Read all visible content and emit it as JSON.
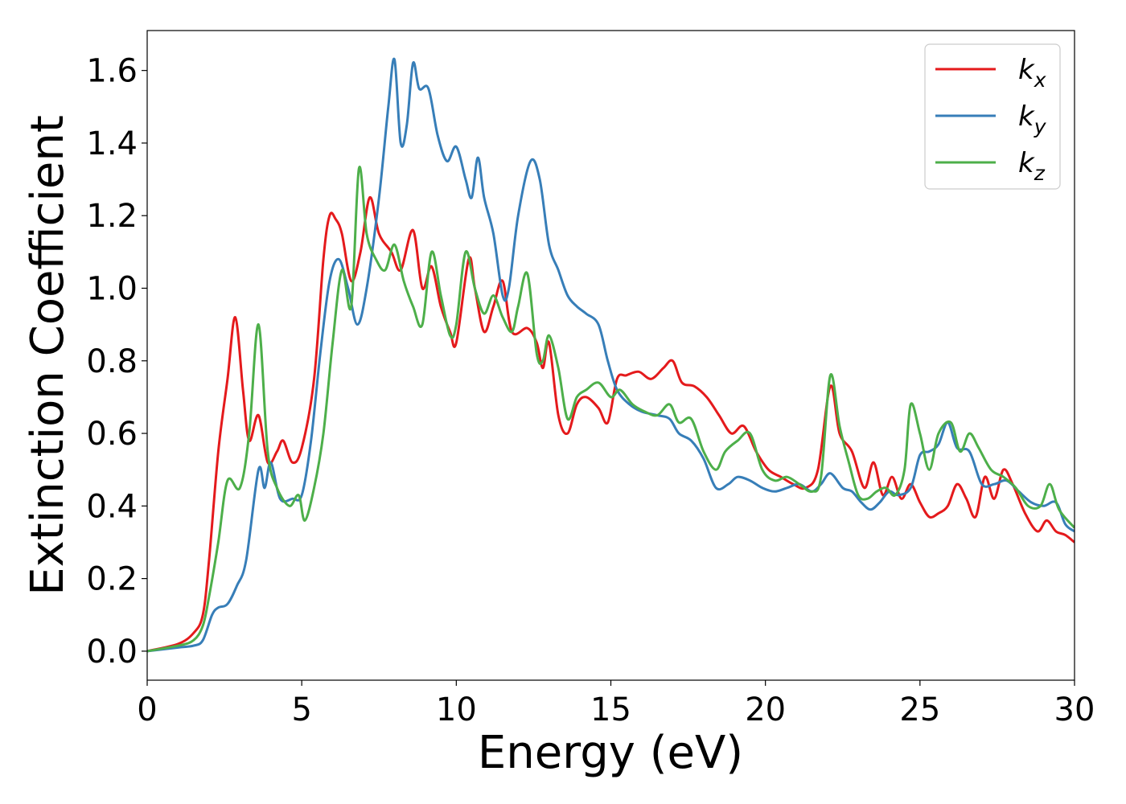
{
  "chart_data": {
    "type": "line",
    "xlabel": "Energy (eV)",
    "ylabel": "Extinction Coefficient",
    "xlim": [
      0,
      30
    ],
    "ylim": [
      -0.08,
      1.71
    ],
    "xticks": [
      0,
      5,
      10,
      15,
      20,
      25,
      30
    ],
    "yticks": [
      0.0,
      0.2,
      0.4,
      0.6,
      0.8,
      1.0,
      1.2,
      1.4,
      1.6
    ],
    "grid": false,
    "legend_position": "top-right",
    "series": [
      {
        "name": "k",
        "subscript": "x",
        "color": "#e41a1c",
        "x": [
          0,
          1,
          1.5,
          1.8,
          2.0,
          2.3,
          2.6,
          2.85,
          3.1,
          3.3,
          3.6,
          3.9,
          4.2,
          4.4,
          4.7,
          5.0,
          5.4,
          5.7,
          5.9,
          6.1,
          6.3,
          6.6,
          6.9,
          7.2,
          7.5,
          7.9,
          8.2,
          8.6,
          8.9,
          9.2,
          9.5,
          9.8,
          10.0,
          10.4,
          10.6,
          10.9,
          11.2,
          11.5,
          11.8,
          12.3,
          12.6,
          12.8,
          13.0,
          13.3,
          13.6,
          13.9,
          14.2,
          14.6,
          14.9,
          15.2,
          15.5,
          15.9,
          16.3,
          16.7,
          17.0,
          17.3,
          17.7,
          18.1,
          18.5,
          18.9,
          19.3,
          19.7,
          20.1,
          20.5,
          20.9,
          21.3,
          21.7,
          22.1,
          22.4,
          22.8,
          23.2,
          23.5,
          23.8,
          24.1,
          24.4,
          24.7,
          25.0,
          25.3,
          25.6,
          25.9,
          26.2,
          26.5,
          26.8,
          27.1,
          27.4,
          27.7,
          28.0,
          28.4,
          28.8,
          29.1,
          29.4,
          29.7,
          30.0
        ],
        "values": [
          0.0,
          0.02,
          0.05,
          0.1,
          0.25,
          0.55,
          0.75,
          0.92,
          0.72,
          0.58,
          0.65,
          0.52,
          0.55,
          0.58,
          0.52,
          0.56,
          0.75,
          1.08,
          1.2,
          1.19,
          1.15,
          1.02,
          1.1,
          1.25,
          1.15,
          1.1,
          1.05,
          1.16,
          1.0,
          1.06,
          0.95,
          0.88,
          0.85,
          1.08,
          1.0,
          0.88,
          0.95,
          1.02,
          0.88,
          0.89,
          0.85,
          0.78,
          0.85,
          0.65,
          0.6,
          0.68,
          0.7,
          0.67,
          0.63,
          0.75,
          0.76,
          0.77,
          0.75,
          0.78,
          0.8,
          0.74,
          0.73,
          0.7,
          0.65,
          0.6,
          0.62,
          0.55,
          0.5,
          0.48,
          0.46,
          0.45,
          0.5,
          0.73,
          0.6,
          0.55,
          0.45,
          0.52,
          0.43,
          0.48,
          0.42,
          0.46,
          0.41,
          0.37,
          0.38,
          0.4,
          0.46,
          0.42,
          0.37,
          0.48,
          0.42,
          0.5,
          0.46,
          0.38,
          0.33,
          0.36,
          0.33,
          0.32,
          0.3
        ]
      },
      {
        "name": "k",
        "subscript": "y",
        "color": "#377eb8",
        "x": [
          0,
          1,
          1.5,
          1.8,
          2.1,
          2.3,
          2.6,
          2.9,
          3.2,
          3.6,
          3.8,
          4.0,
          4.3,
          4.7,
          5.0,
          5.3,
          5.6,
          5.9,
          6.2,
          6.5,
          6.8,
          7.1,
          7.5,
          7.8,
          8.0,
          8.2,
          8.4,
          8.6,
          8.8,
          9.1,
          9.4,
          9.7,
          10.0,
          10.3,
          10.5,
          10.7,
          10.9,
          11.2,
          11.5,
          11.7,
          12.0,
          12.4,
          12.7,
          13.0,
          13.3,
          13.6,
          13.9,
          14.2,
          14.6,
          14.9,
          15.2,
          15.6,
          16.0,
          16.5,
          16.9,
          17.2,
          17.6,
          18.0,
          18.4,
          18.8,
          19.1,
          19.5,
          19.9,
          20.3,
          20.7,
          21.1,
          21.5,
          21.8,
          22.1,
          22.5,
          22.8,
          23.1,
          23.4,
          23.7,
          24.0,
          24.3,
          24.7,
          25.0,
          25.3,
          25.6,
          25.9,
          26.2,
          26.6,
          27.0,
          27.4,
          27.8,
          28.2,
          28.6,
          29.0,
          29.4,
          29.7,
          30.0
        ],
        "values": [
          0.0,
          0.01,
          0.015,
          0.03,
          0.1,
          0.12,
          0.13,
          0.18,
          0.25,
          0.5,
          0.45,
          0.52,
          0.42,
          0.42,
          0.43,
          0.58,
          0.82,
          1.02,
          1.08,
          1.0,
          0.9,
          1.0,
          1.25,
          1.5,
          1.63,
          1.4,
          1.45,
          1.62,
          1.55,
          1.55,
          1.42,
          1.35,
          1.39,
          1.3,
          1.25,
          1.36,
          1.25,
          1.15,
          0.98,
          1.0,
          1.2,
          1.35,
          1.3,
          1.12,
          1.05,
          0.98,
          0.95,
          0.93,
          0.9,
          0.8,
          0.72,
          0.68,
          0.66,
          0.65,
          0.64,
          0.6,
          0.58,
          0.53,
          0.45,
          0.46,
          0.48,
          0.47,
          0.45,
          0.44,
          0.45,
          0.46,
          0.44,
          0.46,
          0.49,
          0.45,
          0.44,
          0.41,
          0.39,
          0.41,
          0.44,
          0.43,
          0.45,
          0.54,
          0.55,
          0.57,
          0.63,
          0.56,
          0.55,
          0.46,
          0.46,
          0.47,
          0.44,
          0.41,
          0.4,
          0.41,
          0.35,
          0.33
        ]
      },
      {
        "name": "k",
        "subscript": "z",
        "color": "#4daf4a",
        "x": [
          0,
          1,
          1.5,
          1.8,
          2.0,
          2.3,
          2.6,
          3.0,
          3.3,
          3.6,
          3.9,
          4.2,
          4.6,
          4.9,
          5.1,
          5.4,
          5.7,
          6.0,
          6.3,
          6.6,
          6.85,
          7.1,
          7.4,
          7.7,
          8.0,
          8.3,
          8.6,
          8.9,
          9.2,
          9.5,
          9.8,
          10.0,
          10.3,
          10.6,
          10.9,
          11.2,
          11.5,
          11.8,
          12.0,
          12.3,
          12.6,
          12.8,
          13.0,
          13.3,
          13.6,
          13.9,
          14.2,
          14.6,
          15.0,
          15.3,
          15.7,
          16.1,
          16.5,
          16.9,
          17.2,
          17.6,
          18.0,
          18.4,
          18.7,
          19.1,
          19.5,
          19.9,
          20.3,
          20.7,
          21.1,
          21.5,
          21.8,
          22.1,
          22.4,
          22.7,
          23.0,
          23.3,
          23.6,
          23.9,
          24.2,
          24.5,
          24.7,
          25.0,
          25.3,
          25.6,
          26.0,
          26.3,
          26.6,
          26.9,
          27.3,
          27.7,
          28.1,
          28.5,
          28.9,
          29.2,
          29.5,
          30.0
        ],
        "values": [
          0.0,
          0.015,
          0.03,
          0.07,
          0.15,
          0.3,
          0.47,
          0.45,
          0.6,
          0.9,
          0.55,
          0.45,
          0.4,
          0.43,
          0.36,
          0.45,
          0.6,
          0.85,
          1.05,
          0.95,
          1.33,
          1.15,
          1.08,
          1.05,
          1.12,
          1.02,
          0.95,
          0.9,
          1.1,
          0.98,
          0.87,
          0.9,
          1.1,
          1.0,
          0.93,
          0.98,
          0.92,
          0.88,
          0.95,
          1.04,
          0.82,
          0.8,
          0.87,
          0.78,
          0.64,
          0.7,
          0.72,
          0.74,
          0.7,
          0.72,
          0.68,
          0.66,
          0.65,
          0.68,
          0.63,
          0.64,
          0.55,
          0.5,
          0.55,
          0.58,
          0.6,
          0.5,
          0.47,
          0.48,
          0.46,
          0.44,
          0.48,
          0.76,
          0.62,
          0.52,
          0.43,
          0.42,
          0.44,
          0.45,
          0.43,
          0.5,
          0.68,
          0.6,
          0.5,
          0.6,
          0.63,
          0.55,
          0.6,
          0.56,
          0.5,
          0.48,
          0.45,
          0.4,
          0.4,
          0.46,
          0.39,
          0.34
        ]
      }
    ]
  }
}
